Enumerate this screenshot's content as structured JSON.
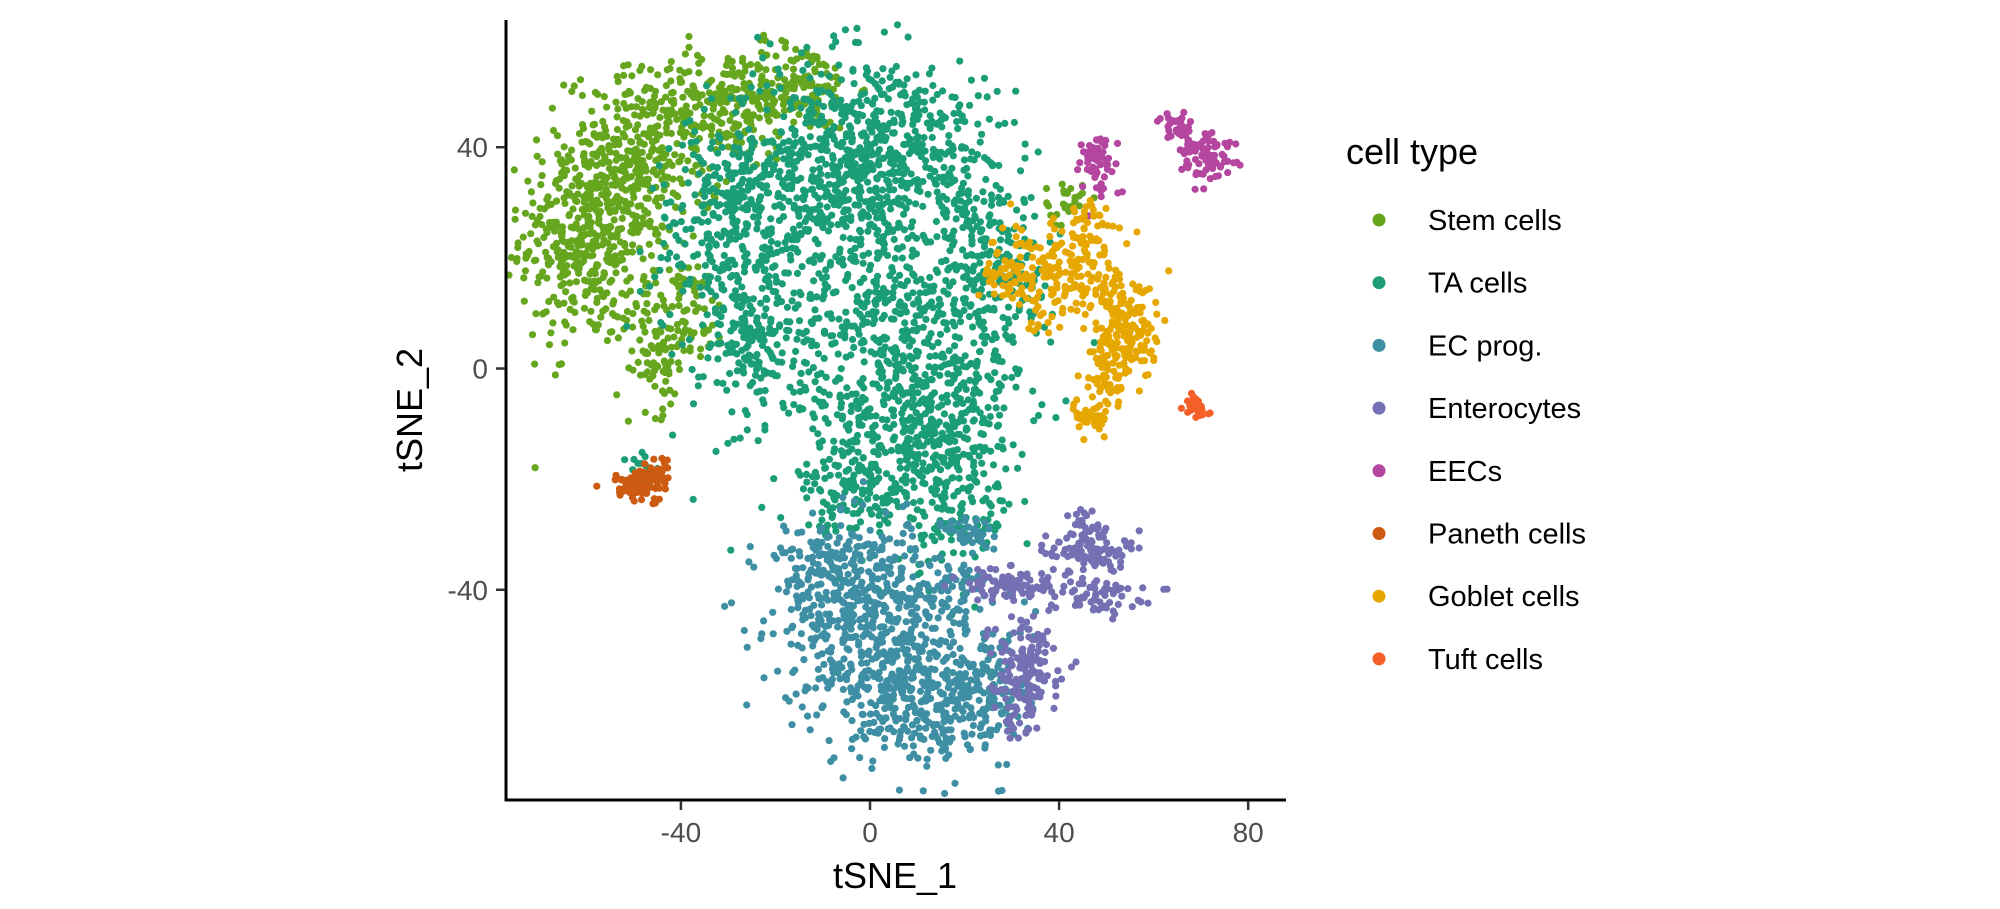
{
  "chart_data": {
    "type": "scatter",
    "xlabel": "tSNE_1",
    "ylabel": "tSNE_2",
    "xlim": [
      -77,
      88
    ],
    "ylim": [
      -78,
      63
    ],
    "xticks": [
      -40,
      0,
      40,
      80
    ],
    "yticks": [
      40,
      0,
      -40
    ],
    "xtick_labels": [
      "-40",
      "0",
      "40",
      "80"
    ],
    "ytick_labels": [
      "40",
      "0",
      "-40"
    ],
    "grid": false,
    "legend_title": "cell type",
    "legend_position": "right",
    "series": [
      {
        "name": "Stem cells",
        "color": "#66A61E",
        "clusters": [
          [
            -60,
            24,
            7,
            10,
            450
          ],
          [
            -48,
            38,
            8,
            8,
            300
          ],
          [
            -30,
            48,
            8,
            5,
            200
          ],
          [
            -15,
            51,
            6,
            4,
            120
          ],
          [
            -40,
            10,
            5,
            5,
            100
          ],
          [
            -45,
            0,
            3,
            4,
            50
          ],
          [
            41,
            30,
            2,
            2,
            25
          ]
        ]
      },
      {
        "name": "TA cells",
        "color": "#1B9E77",
        "clusters": [
          [
            -10,
            35,
            12,
            10,
            500
          ],
          [
            5,
            42,
            9,
            7,
            300
          ],
          [
            -30,
            25,
            8,
            10,
            250
          ],
          [
            -25,
            5,
            6,
            7,
            150
          ],
          [
            5,
            2,
            14,
            15,
            800
          ],
          [
            15,
            -15,
            7,
            8,
            250
          ],
          [
            25,
            20,
            5,
            12,
            200
          ],
          [
            -3,
            -22,
            6,
            4,
            100
          ],
          [
            -48,
            -18,
            2,
            2,
            15
          ],
          [
            30,
            15,
            3,
            4,
            20
          ],
          [
            20,
            -28,
            4,
            3,
            40
          ]
        ]
      },
      {
        "name": "EC prog.",
        "color": "#3E8EA4",
        "clusters": [
          [
            0,
            -45,
            10,
            8,
            500
          ],
          [
            10,
            -60,
            9,
            6,
            300
          ],
          [
            -10,
            -35,
            5,
            4,
            100
          ],
          [
            25,
            -57,
            5,
            6,
            150
          ],
          [
            22,
            -30,
            3,
            2,
            40
          ],
          [
            18,
            -40,
            4,
            3,
            40
          ]
        ]
      },
      {
        "name": "Enterocytes",
        "color": "#7570B3",
        "clusters": [
          [
            30,
            -39,
            5,
            1.5,
            90
          ],
          [
            46,
            -33,
            4,
            2,
            100
          ],
          [
            48,
            -41,
            5,
            1.5,
            60
          ],
          [
            33,
            -53,
            4,
            4,
            120
          ],
          [
            31,
            -61,
            2,
            3,
            40
          ],
          [
            45,
            -28,
            1.5,
            2,
            20
          ]
        ]
      },
      {
        "name": "EECs",
        "color": "#B4469F",
        "clusters": [
          [
            48,
            37,
            2.5,
            3,
            60
          ],
          [
            65,
            44,
            1.5,
            1.5,
            30
          ],
          [
            72,
            38,
            3,
            2,
            60
          ],
          [
            68,
            40,
            2,
            1.5,
            30
          ]
        ]
      },
      {
        "name": "Paneth cells",
        "color": "#CC5A10",
        "clusters": [
          [
            -49,
            -21,
            3,
            1.5,
            80
          ],
          [
            -45,
            -19,
            1.5,
            1.5,
            30
          ]
        ]
      },
      {
        "name": "Goblet cells",
        "color": "#E6A800",
        "clusters": [
          [
            40,
            17,
            7,
            5,
            200
          ],
          [
            55,
            7,
            3.5,
            5,
            150
          ],
          [
            50,
            0,
            2,
            4,
            60
          ],
          [
            47,
            -9,
            2,
            1.5,
            40
          ],
          [
            46,
            25,
            2,
            3,
            30
          ],
          [
            29,
            17,
            3,
            2,
            30
          ]
        ]
      },
      {
        "name": "Tuft cells",
        "color": "#F46028",
        "clusters": [
          [
            69,
            -7,
            1.2,
            1.2,
            30
          ]
        ]
      }
    ]
  }
}
